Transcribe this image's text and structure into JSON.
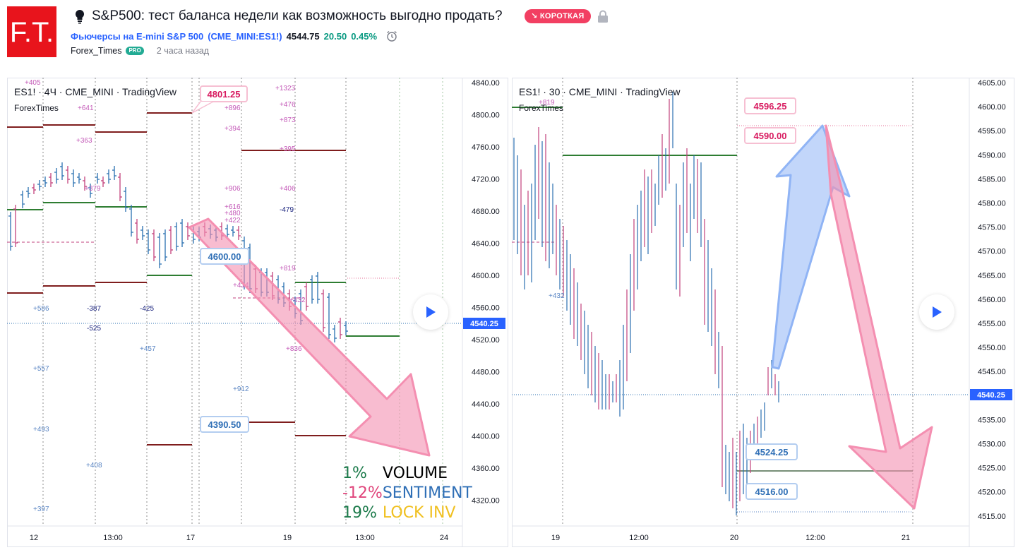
{
  "header": {
    "logo_text": "F.T.",
    "title": "S&P500: тест баланса недели как возможность выгодно продать?",
    "badge": "↘ КОРОТКАЯ",
    "symbol_name": "Фьючерсы на E-mini S&P 500",
    "symbol_code": "(CME_MINI:ES1!)",
    "price": "4544.75",
    "change": "20.50",
    "change_pct": "0.45%",
    "author": "Forex_Times",
    "pro_badge": "PRO",
    "time_ago": "2 часа назад"
  },
  "colors": {
    "brand_red": "#e8141c",
    "short_badge": "#f23f62",
    "link_blue": "#2962ff",
    "up": "#089981",
    "candle_up": "#2a6fb0",
    "candle_down": "#c2417c",
    "level_dark_red": "#7f1d1d",
    "level_green": "#2e7d32",
    "arrow_pink": "#f48fb1",
    "arrow_blue": "#90b4f5"
  },
  "left_chart": {
    "legend": "ES1! · 4Ч · CME_MINI · TradingView",
    "sublabel": "ForexTimes",
    "y_axis": [
      "4840.00",
      "4800.00",
      "4760.00",
      "4720.00",
      "4680.00",
      "4640.00",
      "4600.00",
      "4560.00",
      "4520.00",
      "4480.00",
      "4440.00",
      "4400.00",
      "4360.00",
      "4320.00"
    ],
    "x_axis": [
      "12",
      "13:00",
      "17",
      "19",
      "13:00",
      "24"
    ],
    "last_price": "4540.25",
    "callouts": {
      "top": "4801.25",
      "mid": "4600.00",
      "low": "4390.50"
    },
    "annotations": [
      "+405",
      "+641",
      "+363",
      "+379",
      "+896",
      "+394",
      "+906",
      "+616",
      "+480",
      "+422",
      "+1323",
      "+476",
      "+873",
      "+395",
      "+406",
      "-479",
      "+819",
      "+414",
      "+432",
      "+836",
      "+586",
      "-387",
      "-425",
      "-525",
      "+457",
      "+557",
      "+912",
      "+493",
      "+408",
      "+397"
    ],
    "stats": [
      {
        "pct": "1%",
        "label": "VOLUME"
      },
      {
        "pct": "-12%",
        "label": "SENTIMENT"
      },
      {
        "pct": "19%",
        "label": "LOCK INV"
      }
    ],
    "stat_colors": {
      "pct_up": "#1b7a4a",
      "pct_down": "#e0457b",
      "volume": "#000000",
      "sentiment": "#2f6fb6",
      "lock": "#f0c020"
    },
    "play_icon": "play-icon"
  },
  "right_chart": {
    "legend": "ES1! · 30 · CME_MINI · TradingView",
    "sublabel": "ForexTimes",
    "y_axis": [
      "4605.00",
      "4600.00",
      "4595.00",
      "4590.00",
      "4585.00",
      "4580.00",
      "4575.00",
      "4570.00",
      "4565.00",
      "4560.00",
      "4555.00",
      "4550.00",
      "4545.00",
      "4540.00",
      "4535.00",
      "4530.00",
      "4525.00",
      "4520.00",
      "4515.00"
    ],
    "x_axis": [
      "19",
      "12:00",
      "20",
      "12:00",
      "21"
    ],
    "last_price": "4540.25",
    "callouts": {
      "a": "4596.25",
      "b": "4590.00",
      "c": "4524.25",
      "d": "4516.00"
    },
    "annotations": [
      "+819",
      "+432"
    ],
    "play_icon": "play-icon"
  }
}
